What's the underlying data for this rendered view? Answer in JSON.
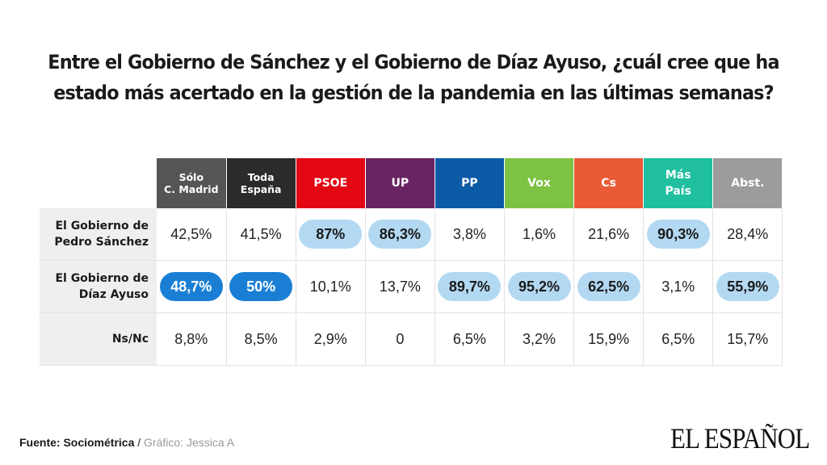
{
  "title": "Entre el Gobierno de Sánchez y el Gobierno de Díaz Ayuso, ¿cuál cree que ha estado más acertado en la gestión de la pandemia en las últimas semanas?",
  "columns": [
    {
      "label": "Sólo\nC. Madrid",
      "color": "#555555",
      "small": true
    },
    {
      "label": "Toda\nEspaña",
      "color": "#2b2b2b",
      "small": true
    },
    {
      "label": "PSOE",
      "color": "#e30613"
    },
    {
      "label": "UP",
      "color": "#6a2463"
    },
    {
      "label": "PP",
      "color": "#0b5aa6"
    },
    {
      "label": "Vox",
      "color": "#7dc242"
    },
    {
      "label": "Cs",
      "color": "#ea5a35"
    },
    {
      "label": "Más\nPaís",
      "color": "#1fbfa0"
    },
    {
      "label": "Abst.",
      "color": "#9c9c9c"
    }
  ],
  "rows": [
    {
      "label": "El Gobierno de\nPedro Sánchez",
      "cells": [
        {
          "v": "42,5%"
        },
        {
          "v": "41,5%"
        },
        {
          "v": "87%",
          "hl": "light"
        },
        {
          "v": "86,3%",
          "hl": "light"
        },
        {
          "v": "3,8%"
        },
        {
          "v": "1,6%"
        },
        {
          "v": "21,6%"
        },
        {
          "v": "90,3%",
          "hl": "light"
        },
        {
          "v": "28,4%"
        }
      ]
    },
    {
      "label": "El Gobierno de\nDíaz Ayuso",
      "cells": [
        {
          "v": "48,7%",
          "hl": "dark"
        },
        {
          "v": "50%",
          "hl": "dark"
        },
        {
          "v": "10,1%"
        },
        {
          "v": "13,7%"
        },
        {
          "v": "89,7%",
          "hl": "light"
        },
        {
          "v": "95,2%",
          "hl": "light"
        },
        {
          "v": "62,5%",
          "hl": "light"
        },
        {
          "v": "3,1%"
        },
        {
          "v": "55,9%",
          "hl": "light"
        }
      ]
    },
    {
      "label": "Ns/Nc",
      "cells": [
        {
          "v": "8,8%"
        },
        {
          "v": "8,5%"
        },
        {
          "v": "2,9%"
        },
        {
          "v": "0"
        },
        {
          "v": "6,5%"
        },
        {
          "v": "3,2%"
        },
        {
          "v": "15,9%"
        },
        {
          "v": "6,5%"
        },
        {
          "v": "15,7%"
        }
      ]
    }
  ],
  "chart_data": {
    "type": "table",
    "title": "Entre el Gobierno de Sánchez y el Gobierno de Díaz Ayuso, ¿cuál cree que ha estado más acertado en la gestión de la pandemia en las últimas semanas?",
    "categories": [
      "Sólo C. Madrid",
      "Toda España",
      "PSOE",
      "UP",
      "PP",
      "Vox",
      "Cs",
      "Más País",
      "Abst."
    ],
    "series": [
      {
        "name": "El Gobierno de Pedro Sánchez",
        "values": [
          42.5,
          41.5,
          87,
          86.3,
          3.8,
          1.6,
          21.6,
          90.3,
          28.4
        ]
      },
      {
        "name": "El Gobierno de Díaz Ayuso",
        "values": [
          48.7,
          50,
          10.1,
          13.7,
          89.7,
          95.2,
          62.5,
          3.1,
          55.9
        ]
      },
      {
        "name": "Ns/Nc",
        "values": [
          8.8,
          8.5,
          2.9,
          0,
          6.5,
          3.2,
          15.9,
          6.5,
          15.7
        ]
      }
    ]
  },
  "footer": {
    "source_label": "Fuente: Sociométrica",
    "separator": " / ",
    "credit": "Gráfico: Jessica A"
  },
  "brand": "EL ESPAÑOL",
  "colors": {
    "highlight_light": "#b3d9f2",
    "highlight_dark": "#1a7fd4",
    "rowhead_bg": "#efefef"
  }
}
